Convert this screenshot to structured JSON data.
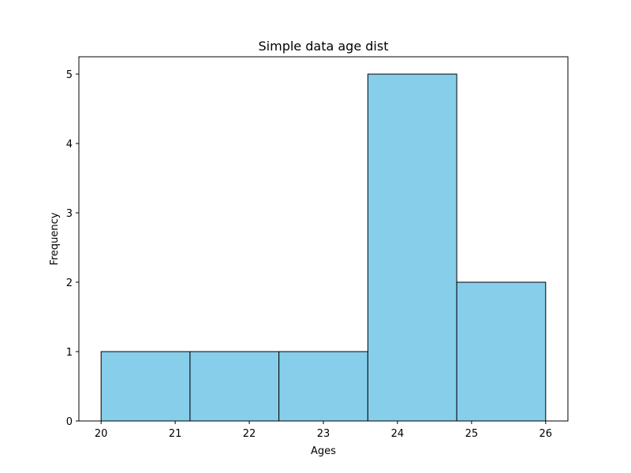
{
  "chart_data": {
    "type": "bar",
    "title": "Simple data age dist",
    "xlabel": "Ages",
    "ylabel": "Frequency",
    "bins": [
      {
        "start": 20.0,
        "end": 21.2,
        "count": 1
      },
      {
        "start": 21.2,
        "end": 22.4,
        "count": 1
      },
      {
        "start": 22.4,
        "end": 23.6,
        "count": 1
      },
      {
        "start": 23.6,
        "end": 24.8,
        "count": 5
      },
      {
        "start": 24.8,
        "end": 26.0,
        "count": 2
      }
    ],
    "xlim": [
      19.7,
      26.3
    ],
    "ylim": [
      0,
      5.25
    ],
    "xticks": [
      "20",
      "21",
      "22",
      "23",
      "24",
      "25",
      "26"
    ],
    "yticks": [
      "0",
      "1",
      "2",
      "3",
      "4",
      "5"
    ],
    "grid": false,
    "bar_color": "#87ceeb",
    "edge_color": "#000000"
  }
}
